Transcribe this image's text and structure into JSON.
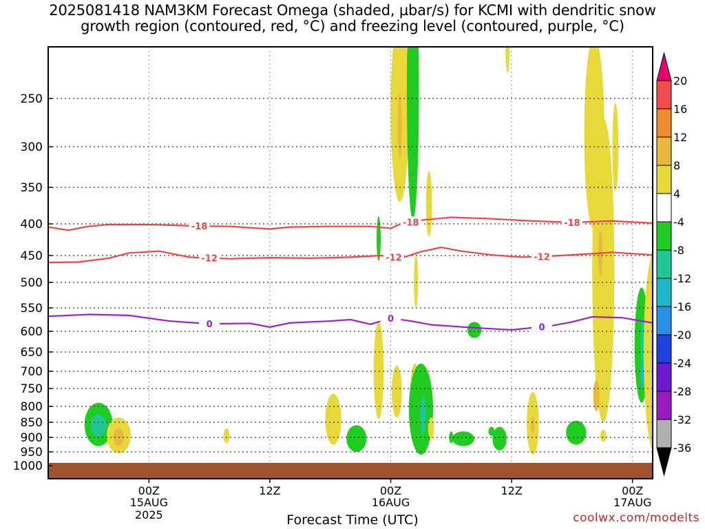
{
  "title": {
    "line1": "2025081418 NAM3KM Forecast Omega (shaded, µbar/s) for KCMI with dendritic snow",
    "line2": "growth region (contoured, red, °C) and freezing level (contoured, purple, °C)"
  },
  "credit": "coolwx.com/modelts",
  "chart_data": {
    "type": "time-height cross section",
    "xlabel": "Forecast Time (UTC)",
    "ylabel": "",
    "x_range_hours": [
      -10,
      50
    ],
    "x_ticks": [
      {
        "hour": 0,
        "label": "00Z",
        "date": "15AUG",
        "year": "2025"
      },
      {
        "hour": 12,
        "label": "12Z",
        "date": "",
        "year": ""
      },
      {
        "hour": 24,
        "label": "00Z",
        "date": "16AUG",
        "year": ""
      },
      {
        "hour": 36,
        "label": "12Z",
        "date": "",
        "year": ""
      },
      {
        "hour": 48,
        "label": "00Z",
        "date": "17AUG",
        "year": ""
      }
    ],
    "y_ticks_hpa": [
      250,
      300,
      350,
      400,
      450,
      500,
      550,
      600,
      650,
      700,
      750,
      800,
      850,
      900,
      950,
      1000
    ],
    "y_range_hpa": [
      200,
      1000
    ],
    "grid": true,
    "ground_color": "#a0522d",
    "colorbar": {
      "levels": [
        20,
        16,
        12,
        8,
        4,
        -4,
        -8,
        -12,
        -16,
        -20,
        -24,
        -28,
        -32,
        -36
      ],
      "colors": [
        "#e8006f",
        "#f04c4c",
        "#ef8a2e",
        "#e9b83c",
        "#e8d93a",
        "#ffffff",
        "#1fcc1f",
        "#21c792",
        "#1bb8c8",
        "#2a8fe8",
        "#2140e0",
        "#6a1bd0",
        "#9a19c0",
        "#b0b0b0",
        "#000000"
      ]
    },
    "series": [
      {
        "name": "-18",
        "kind": "dendritic contour",
        "color": "#ee4444",
        "points": [
          [
            -10,
            405
          ],
          [
            -8,
            410
          ],
          [
            -6,
            404
          ],
          [
            -4,
            401
          ],
          [
            0,
            401
          ],
          [
            4,
            403
          ],
          [
            8,
            404
          ],
          [
            12,
            408
          ],
          [
            14,
            405
          ],
          [
            18,
            404
          ],
          [
            22,
            404
          ],
          [
            24,
            407
          ],
          [
            25,
            400
          ],
          [
            27,
            395
          ],
          [
            30,
            391
          ],
          [
            34,
            393
          ],
          [
            38,
            396
          ],
          [
            42,
            398
          ],
          [
            46,
            396
          ],
          [
            50,
            399
          ]
        ],
        "labels_at": [
          5,
          26,
          42
        ]
      },
      {
        "name": "-12",
        "kind": "dendritic contour",
        "color": "#ee4444",
        "points": [
          [
            -10,
            463
          ],
          [
            -7,
            462
          ],
          [
            -4,
            455
          ],
          [
            -2,
            446
          ],
          [
            1,
            443
          ],
          [
            4,
            453
          ],
          [
            8,
            456
          ],
          [
            12,
            454
          ],
          [
            16,
            455
          ],
          [
            20,
            453
          ],
          [
            23,
            450
          ],
          [
            25,
            455
          ],
          [
            27,
            444
          ],
          [
            29,
            437
          ],
          [
            31,
            443
          ],
          [
            34,
            449
          ],
          [
            37,
            453
          ],
          [
            40,
            451
          ],
          [
            44,
            447
          ],
          [
            46,
            445
          ],
          [
            50,
            449
          ]
        ],
        "labels_at": [
          6,
          24.3,
          39
        ]
      },
      {
        "name": "0",
        "kind": "freezing level",
        "color": "#9d1fcf",
        "points": [
          [
            -10,
            568
          ],
          [
            -6,
            564
          ],
          [
            -2,
            566
          ],
          [
            2,
            578
          ],
          [
            6,
            584
          ],
          [
            10,
            583
          ],
          [
            12,
            591
          ],
          [
            14,
            582
          ],
          [
            18,
            578
          ],
          [
            20,
            575
          ],
          [
            22,
            585
          ],
          [
            24,
            572
          ],
          [
            26,
            578
          ],
          [
            28,
            586
          ],
          [
            32,
            592
          ],
          [
            36,
            597
          ],
          [
            40,
            588
          ],
          [
            42,
            580
          ],
          [
            44,
            569
          ],
          [
            47,
            571
          ],
          [
            50,
            582
          ]
        ],
        "labels_at": [
          6,
          24,
          39
        ]
      }
    ],
    "omega_regions": [
      {
        "value": -8,
        "cx": -5,
        "cy": 860,
        "hx": 1.4,
        "hy": 70
      },
      {
        "value": -12,
        "cx": -5,
        "cy": 860,
        "hx": 0.8,
        "hy": 35
      },
      {
        "value": 4,
        "cx": -3,
        "cy": 895,
        "hx": 1.2,
        "hy": 60
      },
      {
        "value": 8,
        "cx": -3,
        "cy": 900,
        "hx": 0.5,
        "hy": 30
      },
      {
        "value": 4,
        "cx": 7.7,
        "cy": 895,
        "hx": 0.3,
        "hy": 25
      },
      {
        "value": 4,
        "cx": 18.3,
        "cy": 845,
        "hx": 0.8,
        "hy": 80
      },
      {
        "value": -8,
        "cx": 20.6,
        "cy": 905,
        "hx": 1.0,
        "hy": 45
      },
      {
        "value": 4,
        "cx": 22.8,
        "cy": 710,
        "hx": 0.5,
        "hy": 130
      },
      {
        "value": 4,
        "cx": 24.6,
        "cy": 760,
        "hx": 0.5,
        "hy": 75
      },
      {
        "value": -8,
        "cx": 22.8,
        "cy": 425,
        "hx": 0.2,
        "hy": 35
      },
      {
        "value": 4,
        "cx": 24.9,
        "cy": 270,
        "hx": 0.9,
        "hy": 100
      },
      {
        "value": 8,
        "cx": 24.9,
        "cy": 280,
        "hx": 0.2,
        "hy": 35
      },
      {
        "value": -8,
        "cx": 26.2,
        "cy": 255,
        "hx": 0.6,
        "hy": 140
      },
      {
        "value": 4,
        "cx": 27.8,
        "cy": 375,
        "hx": 0.3,
        "hy": 45
      },
      {
        "value": 4,
        "cx": 26.5,
        "cy": 500,
        "hx": 0.2,
        "hy": 50
      },
      {
        "value": 4,
        "cx": 26.4,
        "cy": 790,
        "hx": 0.5,
        "hy": 110
      },
      {
        "value": -8,
        "cx": 27.0,
        "cy": 820,
        "hx": 1.2,
        "hy": 140
      },
      {
        "value": -12,
        "cx": 27.2,
        "cy": 830,
        "hx": 0.3,
        "hy": 60
      },
      {
        "value": 4,
        "cx": 28.0,
        "cy": 870,
        "hx": 0.3,
        "hy": 35
      },
      {
        "value": -8,
        "cx": 30.0,
        "cy": 900,
        "hx": 0.2,
        "hy": 20
      },
      {
        "value": -8,
        "cx": 31.2,
        "cy": 905,
        "hx": 1.1,
        "hy": 25
      },
      {
        "value": -8,
        "cx": 32.3,
        "cy": 598,
        "hx": 0.7,
        "hy": 18
      },
      {
        "value": -8,
        "cx": 34.0,
        "cy": 880,
        "hx": 0.3,
        "hy": 15
      },
      {
        "value": -8,
        "cx": 34.8,
        "cy": 905,
        "hx": 0.7,
        "hy": 40
      },
      {
        "value": 4,
        "cx": 38.1,
        "cy": 860,
        "hx": 0.6,
        "hy": 100
      },
      {
        "value": 8,
        "cx": 38.1,
        "cy": 860,
        "hx": 0.2,
        "hy": 25
      },
      {
        "value": -8,
        "cx": 42.4,
        "cy": 885,
        "hx": 1.0,
        "hy": 40
      },
      {
        "value": 4,
        "cx": 45.1,
        "cy": 895,
        "hx": 0.3,
        "hy": 20
      },
      {
        "value": 4,
        "cx": 44.2,
        "cy": 300,
        "hx": 1.0,
        "hy": 110
      },
      {
        "value": 4,
        "cx": 45.1,
        "cy": 560,
        "hx": 1.1,
        "hy": 290
      },
      {
        "value": 8,
        "cx": 44.8,
        "cy": 450,
        "hx": 0.2,
        "hy": 40
      },
      {
        "value": 8,
        "cx": 44.4,
        "cy": 770,
        "hx": 0.3,
        "hy": 45
      },
      {
        "value": 4,
        "cx": 46.3,
        "cy": 305,
        "hx": 0.3,
        "hy": 50
      },
      {
        "value": -8,
        "cx": 48.9,
        "cy": 650,
        "hx": 0.7,
        "hy": 140
      },
      {
        "value": -12,
        "cx": 49.0,
        "cy": 630,
        "hx": 0.2,
        "hy": 60
      },
      {
        "value": -16,
        "cx": 49.0,
        "cy": 710,
        "hx": 0.2,
        "hy": 40
      },
      {
        "value": 4,
        "cx": 50.3,
        "cy": 700,
        "hx": 1.2,
        "hy": 260
      },
      {
        "value": 8,
        "cx": 50.2,
        "cy": 700,
        "hx": 0.3,
        "hy": 60
      },
      {
        "value": 4,
        "cx": 35.6,
        "cy": 205,
        "hx": 0.2,
        "hy": 20
      }
    ]
  }
}
